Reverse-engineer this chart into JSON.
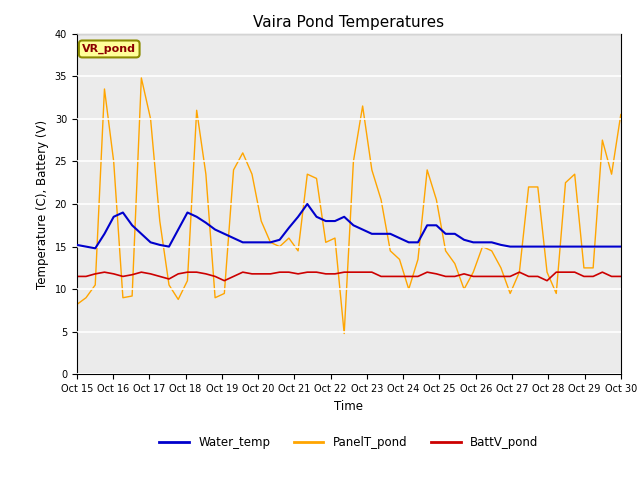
{
  "title": "Vaira Pond Temperatures",
  "xlabel": "Time",
  "ylabel": "Temperature (C), Battery (V)",
  "ylim": [
    0,
    40
  ],
  "yticks": [
    0,
    5,
    10,
    15,
    20,
    25,
    30,
    35,
    40
  ],
  "xtick_labels": [
    "Oct 15",
    "Oct 16",
    "Oct 17",
    "Oct 18",
    "Oct 19",
    "Oct 20",
    "Oct 21",
    "Oct 22",
    "Oct 23",
    "Oct 24",
    "Oct 25",
    "Oct 26",
    "Oct 27",
    "Oct 28",
    "Oct 29",
    "Oct 30"
  ],
  "annotation_text": "VR_pond",
  "annotation_color": "#8B0000",
  "annotation_bg": "#FFFF99",
  "annotation_edge": "#8B8B00",
  "water_temp_color": "#0000CC",
  "panel_temp_color": "#FFA500",
  "batt_color": "#CC0000",
  "bg_color": "#EBEBEB",
  "legend_labels": [
    "Water_temp",
    "PanelT_pond",
    "BattV_pond"
  ],
  "water_temp": [
    15.2,
    15.0,
    14.8,
    16.5,
    18.5,
    19.0,
    17.5,
    16.5,
    15.5,
    15.2,
    15.0,
    17.0,
    19.0,
    18.5,
    17.8,
    17.0,
    16.5,
    16.0,
    15.5,
    15.5,
    15.5,
    15.5,
    15.8,
    17.2,
    18.5,
    20.0,
    18.5,
    18.0,
    18.0,
    18.5,
    17.5,
    17.0,
    16.5,
    16.5,
    16.5,
    16.0,
    15.5,
    15.5,
    17.5,
    17.5,
    16.5,
    16.5,
    15.8,
    15.5,
    15.5,
    15.5,
    15.2,
    15.0,
    15.0,
    15.0,
    15.0,
    15.0,
    15.0,
    15.0,
    15.0,
    15.0,
    15.0,
    15.0,
    15.0,
    15.0
  ],
  "panel_temp": [
    8.2,
    9.0,
    10.5,
    33.5,
    25.0,
    9.0,
    9.2,
    34.8,
    30.0,
    18.0,
    10.5,
    8.8,
    11.0,
    31.0,
    23.5,
    9.0,
    9.5,
    24.0,
    26.0,
    23.5,
    18.0,
    15.5,
    15.0,
    16.0,
    14.5,
    23.5,
    23.0,
    15.5,
    16.0,
    4.8,
    25.0,
    31.5,
    24.0,
    20.5,
    14.5,
    13.5,
    10.0,
    13.5,
    24.0,
    20.5,
    14.5,
    13.0,
    10.0,
    12.0,
    15.0,
    14.5,
    12.5,
    9.5,
    12.0,
    22.0,
    22.0,
    12.0,
    9.5,
    22.5,
    23.5,
    12.5,
    12.5,
    27.5,
    23.5,
    30.5
  ],
  "batt_v": [
    11.5,
    11.5,
    11.8,
    12.0,
    11.8,
    11.5,
    11.7,
    12.0,
    11.8,
    11.5,
    11.2,
    11.8,
    12.0,
    12.0,
    11.8,
    11.5,
    11.0,
    11.5,
    12.0,
    11.8,
    11.8,
    11.8,
    12.0,
    12.0,
    11.8,
    12.0,
    12.0,
    11.8,
    11.8,
    12.0,
    12.0,
    12.0,
    12.0,
    11.5,
    11.5,
    11.5,
    11.5,
    11.5,
    12.0,
    11.8,
    11.5,
    11.5,
    11.8,
    11.5,
    11.5,
    11.5,
    11.5,
    11.5,
    12.0,
    11.5,
    11.5,
    11.0,
    12.0,
    12.0,
    12.0,
    11.5,
    11.5,
    12.0,
    11.5,
    11.5
  ]
}
